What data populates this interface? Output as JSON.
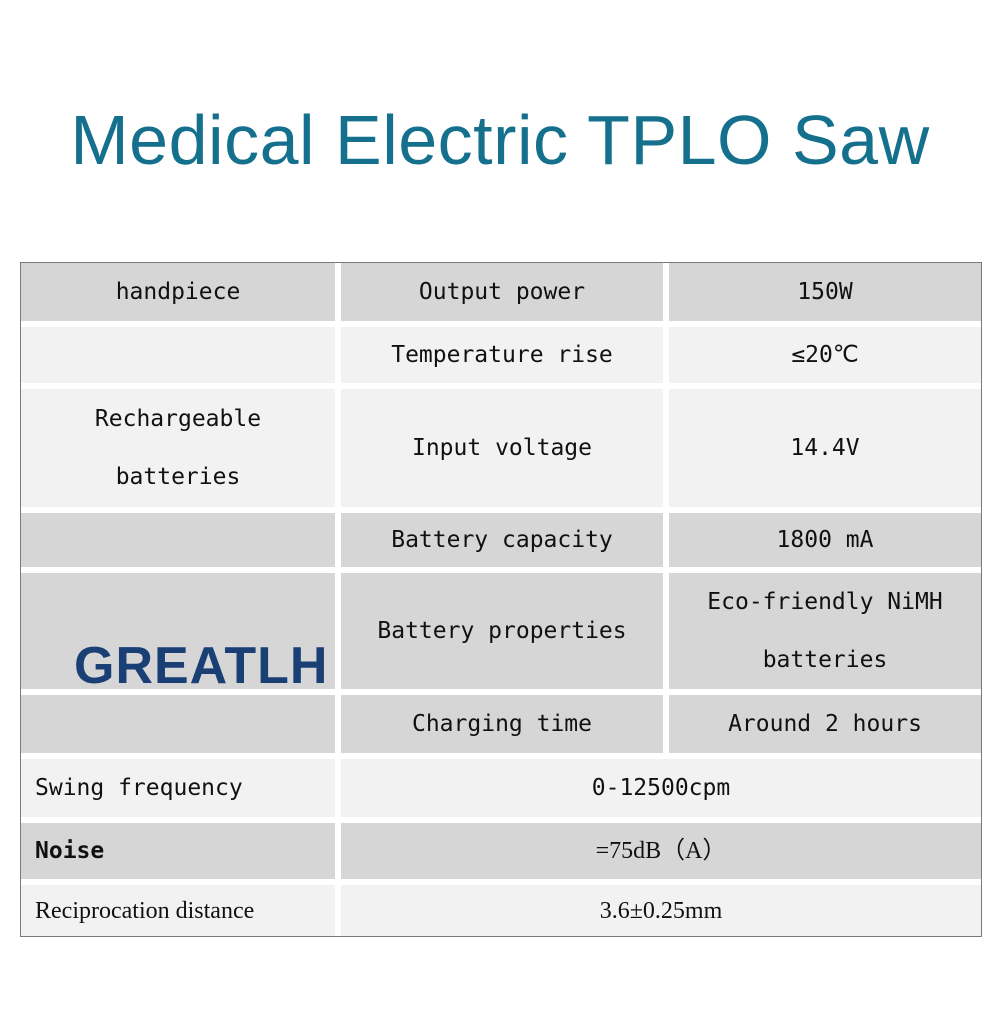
{
  "title": "Medical Electric TPLO Saw",
  "brand": "GREATLH",
  "rows": {
    "handpiece": {
      "label": "handpiece",
      "param": "Output power",
      "value": "150W"
    },
    "temperature": {
      "param": "Temperature rise",
      "value": "≤20℃"
    },
    "batteries": {
      "label_line1": "Rechargeable",
      "label_line2": "batteries",
      "param": "Input voltage",
      "value": "14.4V"
    },
    "capacity": {
      "param": "Battery capacity",
      "value": "1800 mA"
    },
    "properties": {
      "param": "Battery properties",
      "value_line1": "Eco-friendly NiMH",
      "value_line2": "batteries"
    },
    "charging": {
      "param": "Charging time",
      "value": "Around 2 hours"
    },
    "swing": {
      "label": "Swing frequency",
      "value": "0-12500cpm"
    },
    "noise": {
      "label": "Noise",
      "value": "=75dB（A）"
    },
    "reciprocation": {
      "label": "Reciprocation distance",
      "value": "3.6±0.25mm"
    }
  },
  "colors": {
    "title": "#14708d",
    "brand": "#1a3f75",
    "row_dark": "#d6d6d6",
    "row_light": "#f2f2f2"
  }
}
